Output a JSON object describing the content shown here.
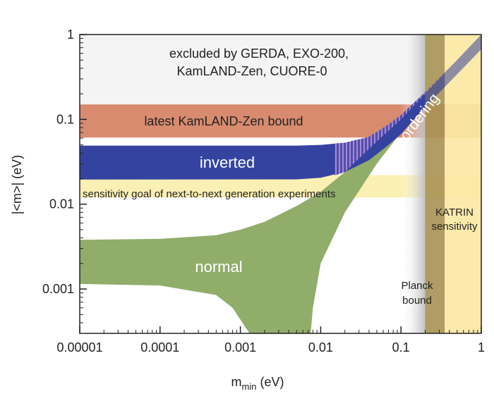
{
  "chart_data": {
    "type": "area",
    "xlabel": "m",
    "xlabel_sub": "min",
    "xlabel_unit": " (eV)",
    "ylabel": "|<m>| (eV)",
    "xscale": "log",
    "yscale": "log",
    "xlim": [
      1e-05,
      1
    ],
    "ylim": [
      0.0003,
      1
    ],
    "x_ticks": [
      {
        "value": 1e-05,
        "label": "0.00001"
      },
      {
        "value": 0.0001,
        "label": "0.0001"
      },
      {
        "value": 0.001,
        "label": "0.001"
      },
      {
        "value": 0.01,
        "label": "0.01"
      },
      {
        "value": 0.1,
        "label": "0.1"
      },
      {
        "value": 1,
        "label": "1"
      }
    ],
    "y_ticks": [
      {
        "value": 0.001,
        "label": "0.001"
      },
      {
        "value": 0.01,
        "label": "0.01"
      },
      {
        "value": 0.1,
        "label": "0.1"
      },
      {
        "value": 1,
        "label": "1"
      }
    ],
    "bands": [
      {
        "id": "gerda-excluded",
        "y": [
          0.15,
          1
        ],
        "color": "#f4f4f4"
      },
      {
        "id": "kamland-bound",
        "y": [
          0.061,
          0.15
        ],
        "color": "#d98b6f"
      },
      {
        "id": "next-gen-goal",
        "y": [
          0.012,
          0.022
        ],
        "color": "#fbf0b3"
      }
    ],
    "vertical_regions": [
      {
        "id": "planck-gradient",
        "x": [
          0.1,
          0.2
        ],
        "color": "#d8d8d8"
      },
      {
        "id": "planck-bound",
        "x": [
          0.2,
          0.35
        ],
        "color": "#a89255"
      },
      {
        "id": "katrin-sensitivity",
        "x": [
          0.35,
          1
        ],
        "color": "#fbe9a3"
      }
    ],
    "series": [
      {
        "name": "normal",
        "color": "#90ad6a",
        "upper": [
          [
            1e-05,
            0.0038
          ],
          [
            0.0001,
            0.0039
          ],
          [
            0.0005,
            0.0043
          ],
          [
            0.001,
            0.005
          ],
          [
            0.002,
            0.0062
          ],
          [
            0.005,
            0.0095
          ],
          [
            0.01,
            0.014
          ],
          [
            0.02,
            0.024
          ],
          [
            0.05,
            0.055
          ],
          [
            0.1,
            0.1
          ],
          [
            0.3,
            0.3
          ],
          [
            1,
            1
          ]
        ],
        "lower": [
          [
            1e-05,
            0.00115
          ],
          [
            0.0001,
            0.0011
          ],
          [
            0.0005,
            0.00085
          ],
          [
            0.0008,
            0.0006
          ],
          [
            0.0011,
            0.00038
          ],
          [
            0.0013,
            0.0003
          ],
          [
            0.0075,
            0.0003
          ],
          [
            0.008,
            0.0006
          ],
          [
            0.01,
            0.002
          ],
          [
            0.02,
            0.008
          ],
          [
            0.05,
            0.03
          ],
          [
            0.1,
            0.07
          ],
          [
            0.3,
            0.25
          ],
          [
            1,
            0.9
          ]
        ]
      },
      {
        "name": "inverted",
        "color": "#3543a0",
        "upper": [
          [
            1e-05,
            0.049
          ],
          [
            0.005,
            0.049
          ],
          [
            0.01,
            0.05
          ],
          [
            0.02,
            0.053
          ],
          [
            0.04,
            0.062
          ],
          [
            0.07,
            0.087
          ],
          [
            0.1,
            0.112
          ],
          [
            0.2,
            0.21
          ],
          [
            0.5,
            0.5
          ],
          [
            1,
            1
          ]
        ],
        "lower": [
          [
            1e-05,
            0.0195
          ],
          [
            0.005,
            0.0196
          ],
          [
            0.01,
            0.0205
          ],
          [
            0.02,
            0.024
          ],
          [
            0.04,
            0.033
          ],
          [
            0.07,
            0.05
          ],
          [
            0.1,
            0.067
          ],
          [
            0.2,
            0.14
          ],
          [
            0.5,
            0.34
          ],
          [
            1,
            0.67
          ]
        ]
      }
    ],
    "annotations": [
      {
        "id": "gerda",
        "lines": [
          "excluded by GERDA, EXO-200,",
          "KamLAND-Zen, CUORE-0"
        ]
      },
      {
        "id": "kamland",
        "lines": [
          "latest KamLAND-Zen bound"
        ]
      },
      {
        "id": "inverted",
        "lines": [
          "inverted"
        ]
      },
      {
        "id": "goal",
        "lines": [
          "sensitivity goal of next-to-next generation experiments"
        ]
      },
      {
        "id": "normal",
        "lines": [
          "normal"
        ]
      },
      {
        "id": "ordering",
        "lines": [
          "ordering"
        ]
      },
      {
        "id": "katrin",
        "lines": [
          "KATRIN",
          "sensitivity"
        ]
      },
      {
        "id": "planck",
        "lines": [
          "Planck",
          "bound"
        ]
      }
    ]
  }
}
